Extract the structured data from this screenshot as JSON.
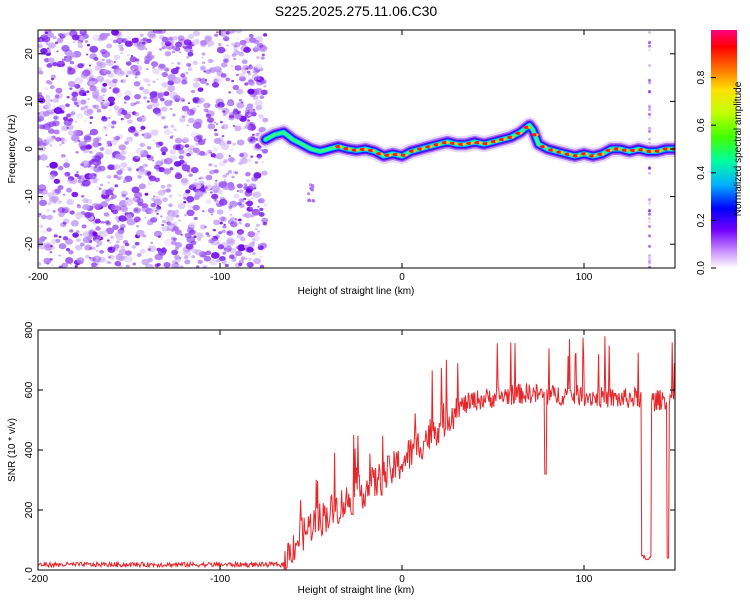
{
  "title": "S225.2025.275.11.06.C30",
  "chart_data": [
    {
      "type": "heatmap",
      "xlabel": "Height of straight line (km)",
      "ylabel": "Frequency (Hz)",
      "xlim": [
        -200,
        150
      ],
      "ylim": [
        -25,
        25
      ],
      "xticks": [
        -200,
        -100,
        0,
        100
      ],
      "yticks": [
        -20,
        -10,
        0,
        10,
        20
      ],
      "noise_region_x": [
        -200,
        -75
      ],
      "ridge": {
        "x": [
          -75,
          -70,
          -65,
          -60,
          -55,
          -50,
          -45,
          -40,
          -35,
          -30,
          -25,
          -20,
          -15,
          -10,
          -5,
          0,
          5,
          10,
          15,
          20,
          25,
          30,
          35,
          40,
          45,
          50,
          55,
          60,
          65,
          70,
          72,
          75,
          80,
          85,
          90,
          95,
          100,
          105,
          110,
          115,
          120,
          125,
          130,
          135,
          140,
          145,
          150
        ],
        "y": [
          2,
          3,
          3.5,
          2,
          1,
          0,
          -0.5,
          0,
          0.5,
          0,
          -0.3,
          0,
          -0.5,
          -1.5,
          -1,
          -1.5,
          -0.5,
          0,
          0.5,
          1,
          1.5,
          1,
          1,
          1.5,
          1,
          1.5,
          2,
          2.5,
          3.5,
          5,
          4,
          1,
          0,
          -0.5,
          -1,
          -1.5,
          -1,
          -1.5,
          -1,
          0,
          0,
          -0.5,
          0,
          -0.5,
          -0.5,
          0,
          0
        ]
      },
      "colorbar": {
        "label": "Normalized spectral amplitude",
        "range": [
          0,
          1
        ],
        "ticks": [
          "0.0",
          "0.2",
          "0.4",
          "0.6",
          "0.8"
        ]
      }
    },
    {
      "type": "line",
      "xlabel": "Height of straight line (km)",
      "ylabel": "SNR (10 * v/v)",
      "xlim": [
        -200,
        150
      ],
      "ylim": [
        0,
        800
      ],
      "xticks": [
        -200,
        -100,
        0,
        100
      ],
      "yticks": [
        0,
        200,
        400,
        600,
        800
      ],
      "color": "#e8262a",
      "trend": {
        "x": [
          -200,
          -65,
          -60,
          -50,
          -40,
          -30,
          -20,
          -10,
          0,
          10,
          20,
          30,
          40,
          50,
          60,
          70,
          80,
          90,
          100,
          110,
          120,
          130,
          135,
          140,
          145,
          150
        ],
        "y": [
          18,
          18,
          80,
          150,
          190,
          230,
          270,
          310,
          360,
          420,
          480,
          540,
          565,
          575,
          585,
          590,
          580,
          585,
          580,
          575,
          570,
          575,
          560,
          565,
          570,
          575
        ]
      },
      "dips": [
        {
          "x": 132,
          "y": 40
        },
        {
          "x": 136,
          "y": 30
        },
        {
          "x": 146,
          "y": 40
        },
        {
          "x": 79,
          "y": 320
        }
      ]
    }
  ]
}
